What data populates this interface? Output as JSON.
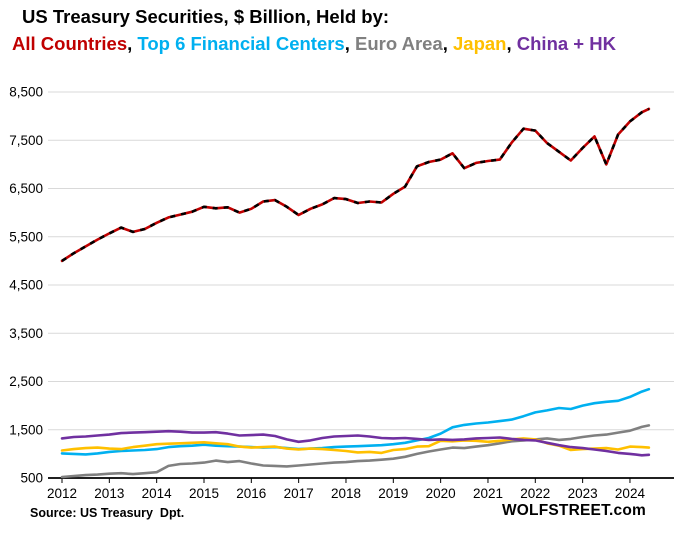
{
  "header": {
    "title": "US Treasury Securities, $ Billion, Held by:",
    "legend": [
      {
        "label": "All Countries",
        "color": "#C00000"
      },
      {
        "label": "Top 6 Financial Centers",
        "color": "#00B0F0"
      },
      {
        "label": "Euro Area",
        "color": "#808080"
      },
      {
        "label": "Japan",
        "color": "#FFC000"
      },
      {
        "label": "China + HK",
        "color": "#7030A0"
      }
    ]
  },
  "footer": {
    "source": "Source: US Treasury  Dpt.",
    "watermark": "WOLFSTREET.com"
  },
  "chart_data": {
    "type": "line",
    "title": "US Treasury Securities, $ Billion, Held by:",
    "ylabel": "$ Billion",
    "ylim": [
      500,
      8500
    ],
    "yticks": [
      500,
      1500,
      2500,
      3500,
      4500,
      5500,
      6500,
      7500,
      8500
    ],
    "ytick_labels": [
      "500",
      "1,500",
      "2,500",
      "3,500",
      "4,500",
      "5,500",
      "6,500",
      "7,500",
      "8,500"
    ],
    "xticks": [
      2012,
      2013,
      2014,
      2015,
      2016,
      2017,
      2018,
      2019,
      2020,
      2021,
      2022,
      2023,
      2024
    ],
    "grid": "horizontal",
    "legend_position": "top",
    "colors": {
      "grid": "#d9d9d9",
      "axis": "#000000",
      "all_countries": "#C00000",
      "top6": "#00B0F0",
      "euro_area": "#808080",
      "japan": "#FFC000",
      "china_hk": "#7030A0"
    },
    "x": [
      2012,
      2012.25,
      2012.5,
      2012.75,
      2013,
      2013.25,
      2013.5,
      2013.75,
      2014,
      2014.25,
      2014.5,
      2014.75,
      2015,
      2015.25,
      2015.5,
      2015.75,
      2016,
      2016.25,
      2016.5,
      2016.75,
      2017,
      2017.25,
      2017.5,
      2017.75,
      2018,
      2018.25,
      2018.5,
      2018.75,
      2019,
      2019.25,
      2019.5,
      2019.75,
      2020,
      2020.25,
      2020.5,
      2020.75,
      2021,
      2021.25,
      2021.5,
      2021.75,
      2022,
      2022.25,
      2022.5,
      2022.75,
      2023,
      2023.25,
      2023.5,
      2023.75,
      2024,
      2024.25,
      2024.4
    ],
    "series": [
      {
        "name": "All Countries",
        "color": "#C00000",
        "overlay_color": "#000000",
        "values": [
          5000,
          5160,
          5300,
          5440,
          5570,
          5690,
          5600,
          5660,
          5790,
          5900,
          5960,
          6020,
          6120,
          6090,
          6110,
          6000,
          6080,
          6230,
          6260,
          6120,
          5950,
          6080,
          6170,
          6300,
          6280,
          6200,
          6230,
          6210,
          6390,
          6540,
          6960,
          7050,
          7100,
          7230,
          6920,
          7030,
          7070,
          7100,
          7450,
          7740,
          7700,
          7440,
          7260,
          7080,
          7340,
          7580,
          7000,
          7620,
          7890,
          8080,
          8150
        ]
      },
      {
        "name": "Top 6 Financial Centers",
        "color": "#00B0F0",
        "overlay_color": null,
        "values": [
          1010,
          1000,
          990,
          1010,
          1040,
          1060,
          1070,
          1080,
          1100,
          1140,
          1160,
          1170,
          1190,
          1170,
          1160,
          1150,
          1140,
          1130,
          1140,
          1120,
          1100,
          1110,
          1120,
          1140,
          1150,
          1160,
          1170,
          1180,
          1200,
          1230,
          1280,
          1330,
          1420,
          1550,
          1600,
          1630,
          1650,
          1680,
          1710,
          1780,
          1860,
          1900,
          1950,
          1930,
          2000,
          2050,
          2080,
          2100,
          2180,
          2290,
          2340
        ]
      },
      {
        "name": "Euro Area",
        "color": "#808080",
        "overlay_color": null,
        "values": [
          520,
          540,
          560,
          570,
          590,
          600,
          580,
          600,
          620,
          750,
          790,
          800,
          820,
          860,
          830,
          850,
          800,
          760,
          750,
          740,
          760,
          780,
          800,
          820,
          830,
          850,
          860,
          880,
          900,
          940,
          1000,
          1050,
          1090,
          1130,
          1120,
          1150,
          1180,
          1220,
          1260,
          1280,
          1300,
          1320,
          1290,
          1310,
          1350,
          1380,
          1400,
          1440,
          1480,
          1560,
          1590
        ]
      },
      {
        "name": "Japan",
        "color": "#FFC000",
        "overlay_color": null,
        "values": [
          1070,
          1100,
          1120,
          1130,
          1110,
          1100,
          1140,
          1170,
          1200,
          1210,
          1220,
          1230,
          1240,
          1220,
          1200,
          1150,
          1130,
          1140,
          1150,
          1110,
          1090,
          1110,
          1100,
          1080,
          1060,
          1030,
          1040,
          1020,
          1080,
          1100,
          1150,
          1160,
          1270,
          1260,
          1280,
          1270,
          1250,
          1270,
          1300,
          1320,
          1300,
          1220,
          1170,
          1080,
          1100,
          1110,
          1120,
          1090,
          1150,
          1140,
          1130
        ]
      },
      {
        "name": "China + HK",
        "color": "#7030A0",
        "overlay_color": null,
        "values": [
          1320,
          1350,
          1360,
          1380,
          1400,
          1430,
          1440,
          1450,
          1460,
          1470,
          1460,
          1440,
          1440,
          1450,
          1420,
          1380,
          1390,
          1400,
          1370,
          1300,
          1250,
          1280,
          1330,
          1360,
          1370,
          1380,
          1360,
          1330,
          1320,
          1330,
          1310,
          1290,
          1300,
          1290,
          1300,
          1320,
          1330,
          1340,
          1310,
          1290,
          1280,
          1230,
          1180,
          1140,
          1120,
          1090,
          1060,
          1020,
          1000,
          970,
          980
        ]
      }
    ]
  }
}
